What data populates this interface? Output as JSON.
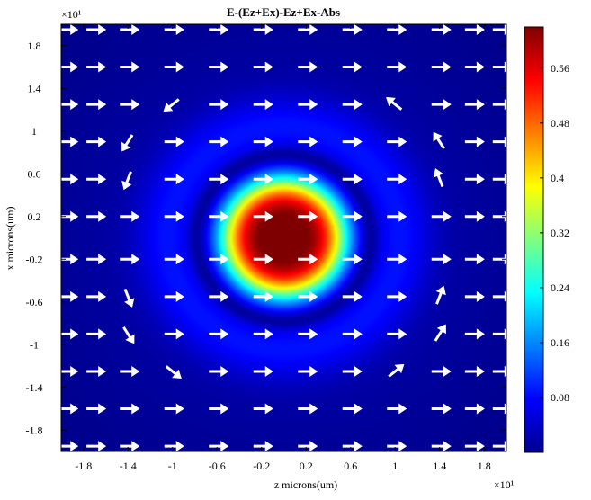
{
  "chart_data": {
    "type": "heatmap",
    "title": "E-(Ez+Ex)-Ez+Ex-Abs",
    "xlabel": "z microns(um)",
    "ylabel": "x microns(um)",
    "x_multiplier": "×10¹",
    "y_multiplier": "×10¹",
    "xlim": [
      -2.0,
      2.0
    ],
    "ylim": [
      -2.0,
      2.0
    ],
    "x_ticks": [
      -1.8,
      -1.4,
      -1,
      -0.6,
      -0.2,
      0.2,
      0.6,
      1,
      1.4,
      1.8
    ],
    "y_ticks": [
      1.8,
      1.4,
      1,
      0.6,
      0.2,
      -0.2,
      -0.6,
      -1,
      -1.4,
      -1.8
    ],
    "colorbar": {
      "range": [
        0,
        0.62
      ],
      "ticks": [
        0.56,
        0.48,
        0.4,
        0.32,
        0.24,
        0.16,
        0.08
      ],
      "colormap": "jet"
    },
    "field": {
      "description_peak": 0.6,
      "core_radius": 0.55,
      "ring_radius": 1.05,
      "ring_value": 0.06,
      "background_value": 0.035
    },
    "vector_field": {
      "color": "#ffffff",
      "grid_z": [
        -1.95,
        -1.7,
        -1.4,
        -1.0,
        -0.6,
        -0.2,
        0.2,
        0.6,
        1.0,
        1.4,
        1.7,
        1.95
      ],
      "grid_x": [
        1.95,
        1.6,
        1.25,
        0.9,
        0.55,
        0.2,
        -0.2,
        -0.55,
        -0.9,
        -1.25,
        -1.6,
        -1.95
      ]
    }
  }
}
